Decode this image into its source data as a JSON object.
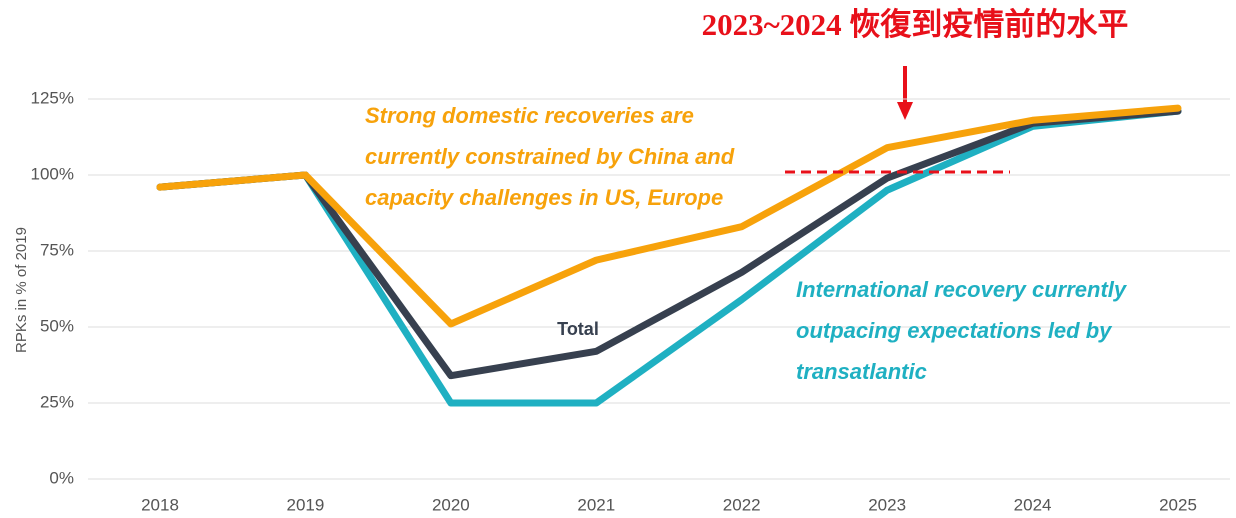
{
  "chart_data": {
    "type": "line",
    "title": "2023~2024 恢復到疫情前的水平",
    "y_label": "RPKs in % of 2019",
    "categories": [
      "2018",
      "2019",
      "2020",
      "2021",
      "2022",
      "2023",
      "2024",
      "2025"
    ],
    "series": [
      {
        "color": "#1fb0c2",
        "values": [
          96,
          100,
          25,
          25,
          59,
          95,
          116,
          121
        ]
      },
      {
        "name": "Total",
        "color": "#37404f",
        "values": [
          96,
          100,
          34,
          42,
          68,
          99,
          117,
          121
        ]
      },
      {
        "color": "#f7a20b",
        "values": [
          96,
          100,
          51,
          72,
          83,
          109,
          118,
          122
        ]
      }
    ],
    "ylim": [
      0,
      125
    ],
    "yticks": [
      {
        "value": 0,
        "label": "0%"
      },
      {
        "value": 25,
        "label": "25%"
      },
      {
        "value": 50,
        "label": "50%"
      },
      {
        "value": 75,
        "label": "75%"
      },
      {
        "value": 100,
        "label": "100%"
      },
      {
        "value": 125,
        "label": "125%"
      }
    ],
    "grid": true,
    "reference_line": {
      "value": 101,
      "color": "#e8101a"
    },
    "annotations": [
      {
        "color": "#f7a20b",
        "lines": [
          "Strong domestic recoveries are",
          "currently constrained by China and",
          "capacity challenges in US, Europe"
        ]
      },
      {
        "color": "#1fb0c2",
        "lines": [
          "International recovery currently",
          "outpacing expectations led by",
          "transatlantic"
        ]
      }
    ]
  }
}
